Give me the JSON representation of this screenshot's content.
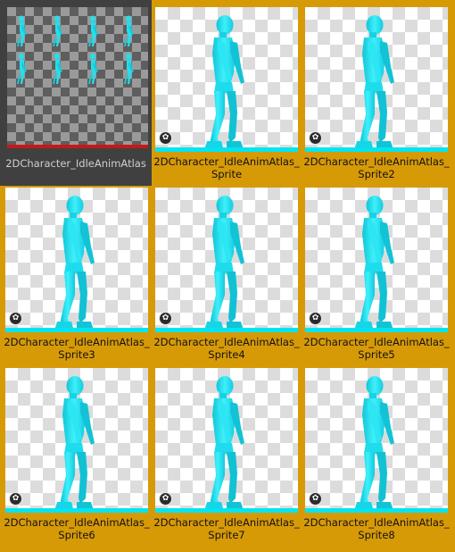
{
  "atlas": {
    "label": "2DCharacter_IdleAnimAtlas",
    "accent": "#c4191a"
  },
  "sprite_tiles": [
    {
      "line1": "2DCharacter_IdleAnimAtlas_",
      "line2": "Sprite"
    },
    {
      "line1": "2DCharacter_IdleAnimAtlas_",
      "line2": "Sprite2"
    },
    {
      "line1": "2DCharacter_IdleAnimAtlas_",
      "line2": "Sprite3"
    },
    {
      "line1": "2DCharacter_IdleAnimAtlas_",
      "line2": "Sprite4"
    },
    {
      "line1": "2DCharacter_IdleAnimAtlas_",
      "line2": "Sprite5"
    },
    {
      "line1": "2DCharacter_IdleAnimAtlas_",
      "line2": "Sprite6"
    },
    {
      "line1": "2DCharacter_IdleAnimAtlas_",
      "line2": "Sprite7"
    },
    {
      "line1": "2DCharacter_IdleAnimAtlas_",
      "line2": "Sprite8"
    }
  ],
  "colors": {
    "selection": "#d79a07",
    "character": "#19dcea",
    "ground": "#00e5f0"
  },
  "icons": {
    "sprite_badge": "sprite-asset-icon"
  }
}
